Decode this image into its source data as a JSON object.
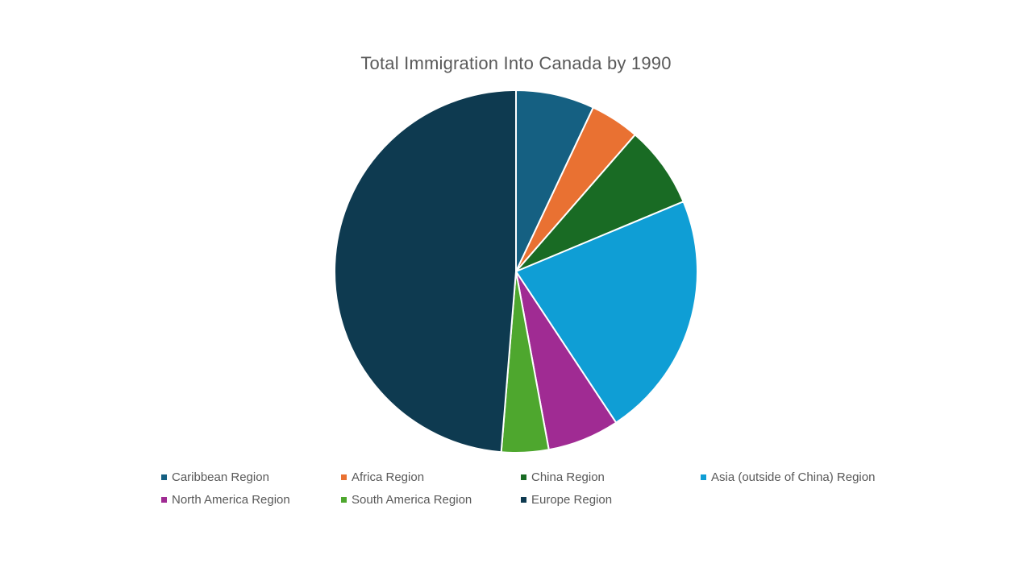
{
  "chart_data": {
    "type": "pie",
    "title": "Total Immigration Into Canada by 1990",
    "categories": [
      "Caribbean Region",
      "Africa Region",
      "China Region",
      "Asia (outside of China) Region",
      "North America Region",
      "South America Region",
      "Europe Region"
    ],
    "values": [
      7.0,
      4.4,
      7.3,
      22.0,
      6.4,
      4.2,
      48.7
    ],
    "colors": [
      "#156082",
      "#E97132",
      "#196B24",
      "#0F9ED5",
      "#A02B93",
      "#4EA72E",
      "#0E3A50"
    ],
    "legend": "bottom",
    "start_angle_deg": 0,
    "direction": "clockwise"
  }
}
